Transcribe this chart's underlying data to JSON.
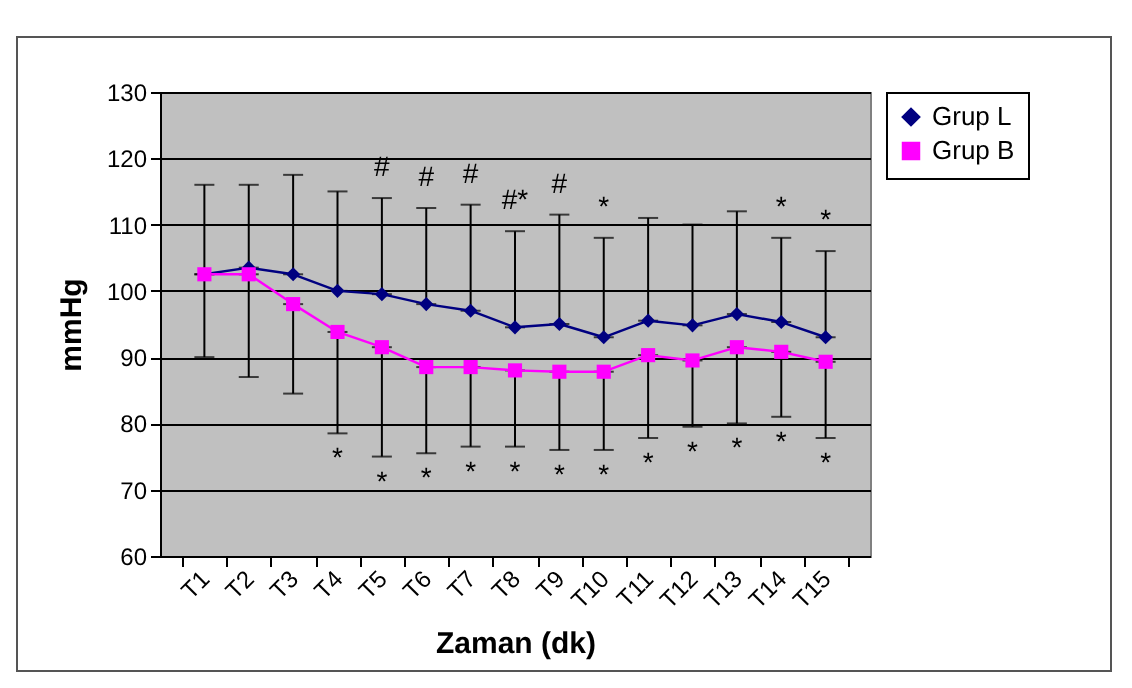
{
  "chart_data": {
    "type": "line",
    "xlabel": "Zaman (dk)",
    "ylabel": "mmHg",
    "categories": [
      "T1",
      "T2",
      "T3",
      "T4",
      "T5",
      "T6",
      "T7",
      "T8",
      "T9",
      "T10",
      "T11",
      "T12",
      "T13",
      "T14",
      "T15"
    ],
    "series": [
      {
        "name": "Grup L",
        "color": "#000080",
        "marker": "diamond",
        "values": [
          102.5,
          103.5,
          102.5,
          100,
          99.5,
          98,
          97,
          94.5,
          95,
          93,
          95.5,
          94.8,
          96.5,
          95.3,
          93
        ],
        "errors": [
          [
            102.5,
            116
          ],
          [
            103.5,
            116
          ],
          [
            102.5,
            117.5
          ],
          [
            100,
            115
          ],
          [
            99.5,
            114
          ],
          [
            98,
            112.5
          ],
          [
            97,
            113
          ],
          [
            94.5,
            109
          ],
          [
            95,
            111.5
          ],
          [
            93,
            108
          ],
          [
            95.5,
            111
          ],
          [
            94.8,
            110
          ],
          [
            96.5,
            112
          ],
          [
            95.3,
            108
          ],
          [
            93,
            106
          ]
        ]
      },
      {
        "name": "Grup B",
        "color": "#ff00ff",
        "marker": "square",
        "values": [
          102.5,
          102.5,
          98,
          93.8,
          91.5,
          88.5,
          88.5,
          88,
          87.8,
          87.8,
          90.3,
          89.5,
          91.5,
          90.8,
          89.3
        ],
        "errors": [
          [
            90,
            102.5
          ],
          [
            87,
            102.5
          ],
          [
            84.5,
            98
          ],
          [
            78.5,
            93.8
          ],
          [
            75,
            91.5
          ],
          [
            75.5,
            88.5
          ],
          [
            76.5,
            88.5
          ],
          [
            76.5,
            88
          ],
          [
            76,
            87.8
          ],
          [
            76,
            87.8
          ],
          [
            77.8,
            90.3
          ],
          [
            79.5,
            89.5
          ],
          [
            80,
            91.5
          ],
          [
            81,
            90.8
          ],
          [
            77.8,
            89.3
          ]
        ]
      }
    ],
    "ylim": [
      60,
      130
    ],
    "yticks": [
      60,
      70,
      80,
      90,
      100,
      110,
      120,
      130
    ],
    "grid": "y",
    "legend": "right",
    "line_style": "solid",
    "annotations": [
      {
        "text": "#",
        "x": "T5",
        "y": 114
      },
      {
        "text": "#",
        "x": "T6",
        "y": 112.5
      },
      {
        "text": "#",
        "x": "T7",
        "y": 113
      },
      {
        "text": "#*",
        "x": "T8",
        "y": 109
      },
      {
        "text": "#",
        "x": "T9",
        "y": 111.5
      },
      {
        "text": "*",
        "x": "T10",
        "y": 108
      },
      {
        "text": "*",
        "x": "T14",
        "y": 108
      },
      {
        "text": "*",
        "x": "T15",
        "y": 106
      },
      {
        "text": "*",
        "x": "T4",
        "y": 78.5
      },
      {
        "text": "*",
        "x": "T5",
        "y": 75
      },
      {
        "text": "*",
        "x": "T6",
        "y": 75.5
      },
      {
        "text": "*",
        "x": "T7",
        "y": 76.5
      },
      {
        "text": "*",
        "x": "T8",
        "y": 76.5
      },
      {
        "text": "*",
        "x": "T9",
        "y": 76
      },
      {
        "text": "*",
        "x": "T10",
        "y": 76
      },
      {
        "text": "*",
        "x": "T11",
        "y": 77.8
      },
      {
        "text": "*",
        "x": "T12",
        "y": 79.5
      },
      {
        "text": "*",
        "x": "T13",
        "y": 80
      },
      {
        "text": "*",
        "x": "T14",
        "y": 81
      },
      {
        "text": "*",
        "x": "T15",
        "y": 77.8
      }
    ]
  }
}
